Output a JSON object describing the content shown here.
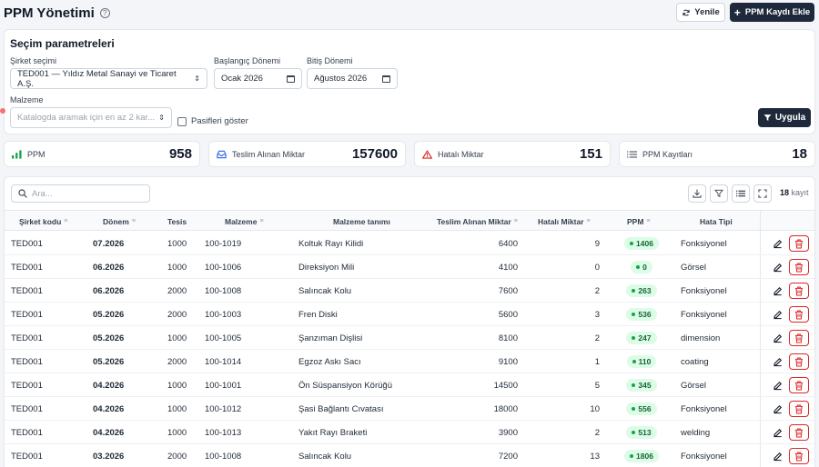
{
  "header": {
    "title": "PPM Yönetimi",
    "help_icon": "question-circle-icon",
    "refresh_label": "Yenile",
    "add_label": "PPM Kaydı Ekle"
  },
  "params": {
    "title": "Seçim parametreleri",
    "company_label": "Şirket seçimi",
    "company_value": "TED001 — Yıldız Metal Sanayi ve Ticaret A.Ş.",
    "start_label": "Başlangıç Dönemi",
    "start_value": "Ocak 2026",
    "end_label": "Bitiş Dönemi",
    "end_value": "Ağustos 2026",
    "material_label": "Malzeme",
    "material_placeholder": "Katalogda aramak için en az 2 kar...",
    "passive_label": "Pasifleri göster",
    "apply_label": "Uygula"
  },
  "stats": [
    {
      "label": "PPM",
      "value": "958",
      "icon": "bar-chart-icon"
    },
    {
      "label": "Teslim Alınan Miktar",
      "value": "157600",
      "icon": "inbox-icon"
    },
    {
      "label": "Hatalı Miktar",
      "value": "151",
      "icon": "warning-icon"
    },
    {
      "label": "PPM Kayıtları",
      "value": "18",
      "icon": "list-icon"
    }
  ],
  "table": {
    "search_placeholder": "Ara...",
    "count_value": "18",
    "count_suffix": "kayıt",
    "columns": [
      "Şirket kodu",
      "Dönem",
      "Tesis",
      "Malzeme",
      "Malzeme tanımı",
      "Teslim Alınan Miktar",
      "Hatalı Miktar",
      "PPM",
      "Hata Tipi"
    ],
    "rows": [
      {
        "company": "TED001",
        "period": "07.2026",
        "plant": "1000",
        "material": "100-1019",
        "desc": "Koltuk Rayı Kilidi",
        "received": "6400",
        "defect": "9",
        "ppm": "1406",
        "type": "Fonksiyonel"
      },
      {
        "company": "TED001",
        "period": "06.2026",
        "plant": "1000",
        "material": "100-1006",
        "desc": "Direksiyon Mili",
        "received": "4100",
        "defect": "0",
        "ppm": "0",
        "type": "Görsel"
      },
      {
        "company": "TED001",
        "period": "06.2026",
        "plant": "2000",
        "material": "100-1008",
        "desc": "Salıncak Kolu",
        "received": "7600",
        "defect": "2",
        "ppm": "263",
        "type": "Fonksiyonel"
      },
      {
        "company": "TED001",
        "period": "05.2026",
        "plant": "2000",
        "material": "100-1003",
        "desc": "Fren Diski",
        "received": "5600",
        "defect": "3",
        "ppm": "536",
        "type": "Fonksiyonel"
      },
      {
        "company": "TED001",
        "period": "05.2026",
        "plant": "1000",
        "material": "100-1005",
        "desc": "Şanzıman Dişlisi",
        "received": "8100",
        "defect": "2",
        "ppm": "247",
        "type": "dimension"
      },
      {
        "company": "TED001",
        "period": "05.2026",
        "plant": "2000",
        "material": "100-1014",
        "desc": "Egzoz Askı Sacı",
        "received": "9100",
        "defect": "1",
        "ppm": "110",
        "type": "coating"
      },
      {
        "company": "TED001",
        "period": "04.2026",
        "plant": "1000",
        "material": "100-1001",
        "desc": "Ön Süspansiyon Körüğü",
        "received": "14500",
        "defect": "5",
        "ppm": "345",
        "type": "Görsel"
      },
      {
        "company": "TED001",
        "period": "04.2026",
        "plant": "1000",
        "material": "100-1012",
        "desc": "Şasi Bağlantı Cıvatası",
        "received": "18000",
        "defect": "10",
        "ppm": "556",
        "type": "Fonksiyonel"
      },
      {
        "company": "TED001",
        "period": "04.2026",
        "plant": "1000",
        "material": "100-1013",
        "desc": "Yakıt Rayı Braketi",
        "received": "3900",
        "defect": "2",
        "ppm": "513",
        "type": "welding"
      },
      {
        "company": "TED001",
        "period": "03.2026",
        "plant": "2000",
        "material": "100-1008",
        "desc": "Salıncak Kolu",
        "received": "7200",
        "defect": "13",
        "ppm": "1806",
        "type": "Fonksiyonel"
      }
    ]
  }
}
